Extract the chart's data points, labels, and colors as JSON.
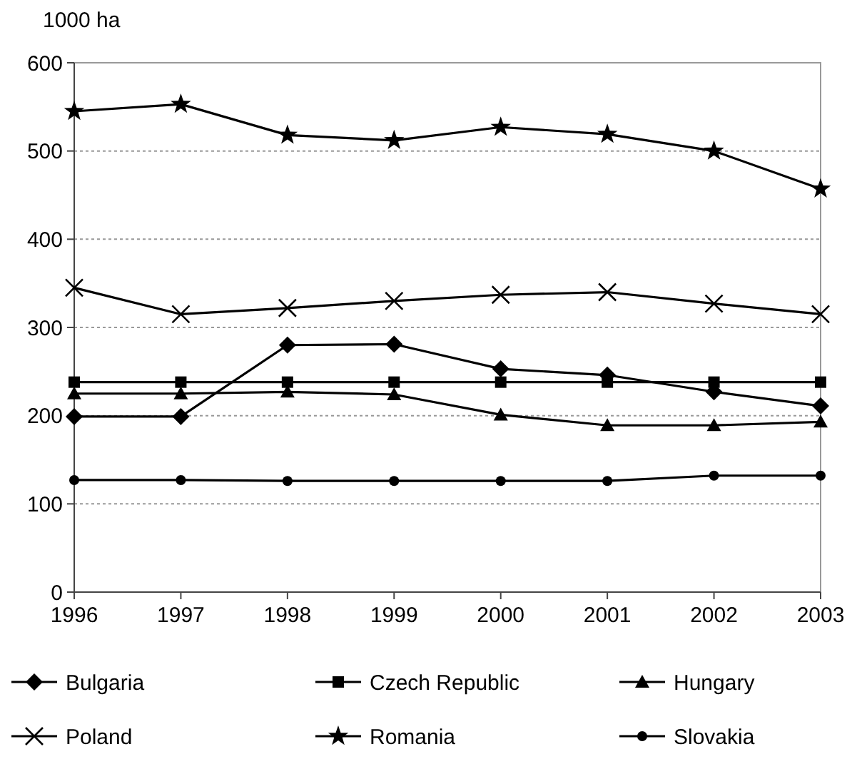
{
  "chart_data": {
    "type": "line",
    "ylabel": "1000 ha",
    "x": [
      1996,
      1997,
      1998,
      1999,
      2000,
      2001,
      2002,
      2003
    ],
    "xlim": [
      1996,
      2003
    ],
    "xticks": [
      1996,
      1997,
      1998,
      1999,
      2000,
      2001,
      2002,
      2003
    ],
    "ylim": [
      0,
      600
    ],
    "yticks": [
      0,
      100,
      200,
      300,
      400,
      500,
      600
    ],
    "grid": "y",
    "legend": "bottom",
    "line_style": "solid",
    "series": [
      {
        "name": "Bulgaria",
        "color": "#000000",
        "marker": "diamond",
        "values": [
          199,
          199,
          280,
          281,
          253,
          246,
          227,
          211
        ]
      },
      {
        "name": "Czech Republic",
        "color": "#000000",
        "marker": "square",
        "values": [
          238,
          238,
          238,
          238,
          238,
          238,
          238,
          238
        ]
      },
      {
        "name": "Hungary",
        "color": "#000000",
        "marker": "triangle",
        "values": [
          225,
          225,
          227,
          224,
          201,
          189,
          189,
          193
        ]
      },
      {
        "name": "Poland",
        "color": "#000000",
        "marker": "cross",
        "values": [
          345,
          315,
          322,
          330,
          337,
          340,
          327,
          315
        ]
      },
      {
        "name": "Romania",
        "color": "#000000",
        "marker": "star",
        "values": [
          545,
          553,
          518,
          512,
          527,
          519,
          500,
          457
        ]
      },
      {
        "name": "Slovakia",
        "color": "#000000",
        "marker": "circle",
        "values": [
          127,
          127,
          126,
          126,
          126,
          126,
          132,
          132
        ]
      }
    ]
  }
}
